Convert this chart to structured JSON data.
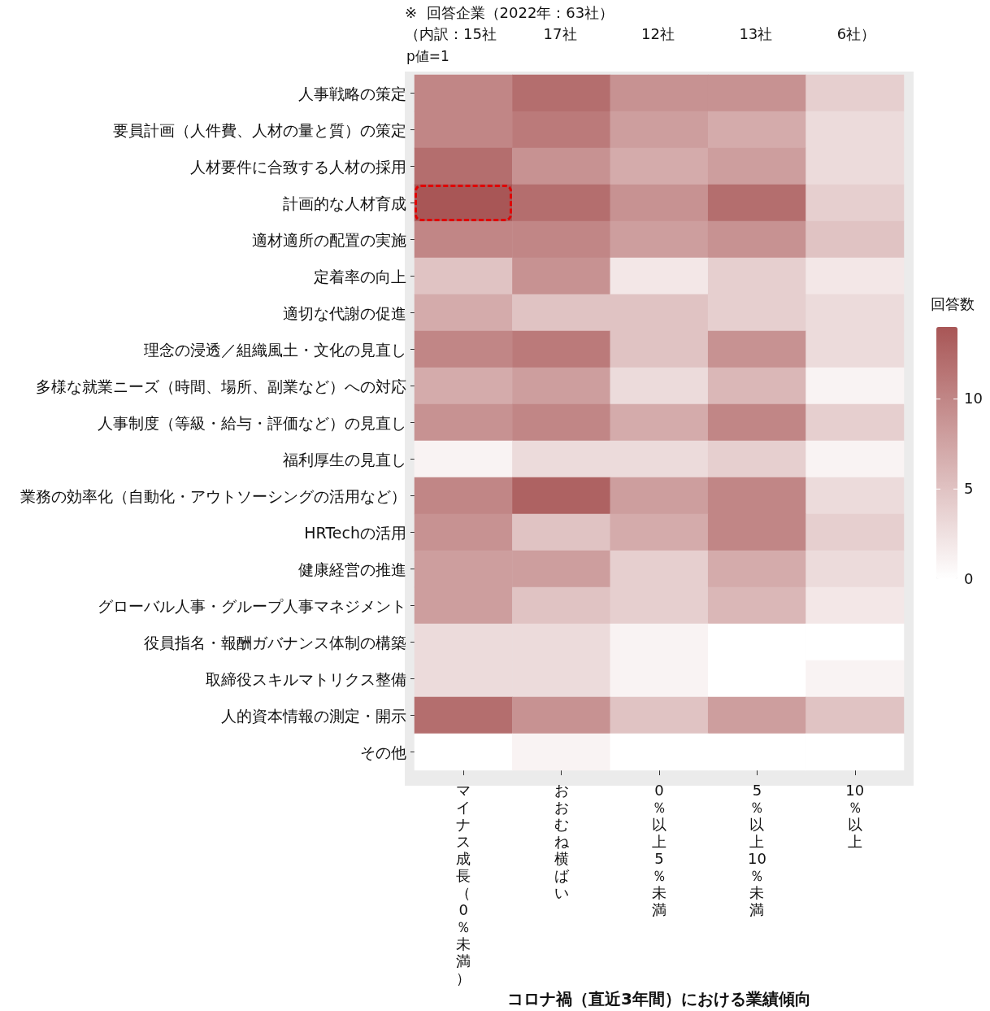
{
  "chart_data": {
    "type": "heatmap",
    "title": "※  回答企業（2022年：63社）",
    "annotations": [
      "（内訳：15社",
      "17社",
      "12社",
      "13社",
      "6社）",
      "p値=1"
    ],
    "xlabel": "コロナ禍（直近3年間）における業績傾向",
    "clabel": "回答数",
    "categories": [
      "マイナス成長（0％未満）",
      "おおむね横ばい",
      "0％以上5％未満",
      "5％以上10％未満",
      "10％以上"
    ],
    "y_categories": [
      "人事戦略の策定",
      "要員計画（人件費、人材の量と質）の策定",
      "人材要件に合致する人材の採用",
      "計画的な人材育成",
      "適材適所の配置の実施",
      "定着率の向上",
      "適切な代謝の促進",
      "理念の浸透／組織風土・文化の見直し",
      "多様な就業ニーズ（時間、場所、副業など）への対応",
      "人事制度（等級・給与・評価など）の見直し",
      "福利厚生の見直し",
      "業務の効率化（自動化・アウトソーシングの活用など）",
      "HRTechの活用",
      "健康経営の推進",
      "グローバル人事・グループ人事マネジメント",
      "役員指名・報酬ガバナンス体制の構築",
      "取締役スキルマトリクス整備",
      "人的資本情報の測定・開示",
      "その他"
    ],
    "cells": [
      [
        10,
        12,
        9,
        9,
        4
      ],
      [
        10,
        11,
        8,
        7,
        3
      ],
      [
        12,
        9,
        7,
        8,
        3
      ],
      [
        14,
        12,
        9,
        12,
        4
      ],
      [
        10,
        10,
        8,
        9,
        5
      ],
      [
        5,
        9,
        2,
        4,
        2
      ],
      [
        7,
        5,
        5,
        4,
        3
      ],
      [
        10,
        11,
        5,
        9,
        3
      ],
      [
        7,
        8,
        3,
        6,
        1
      ],
      [
        9,
        10,
        7,
        10,
        4
      ],
      [
        1,
        3,
        3,
        4,
        1
      ],
      [
        10,
        13,
        8,
        10,
        3
      ],
      [
        9,
        5,
        7,
        10,
        4
      ],
      [
        8,
        8,
        4,
        7,
        3
      ],
      [
        8,
        5,
        4,
        6,
        2
      ],
      [
        3,
        3,
        1,
        0,
        0
      ],
      [
        3,
        3,
        1,
        0,
        1
      ],
      [
        12,
        9,
        5,
        8,
        5
      ],
      [
        0,
        1,
        0,
        0,
        0
      ]
    ],
    "clim": [
      0,
      14
    ],
    "cticks": [
      0,
      5,
      10
    ]
  }
}
